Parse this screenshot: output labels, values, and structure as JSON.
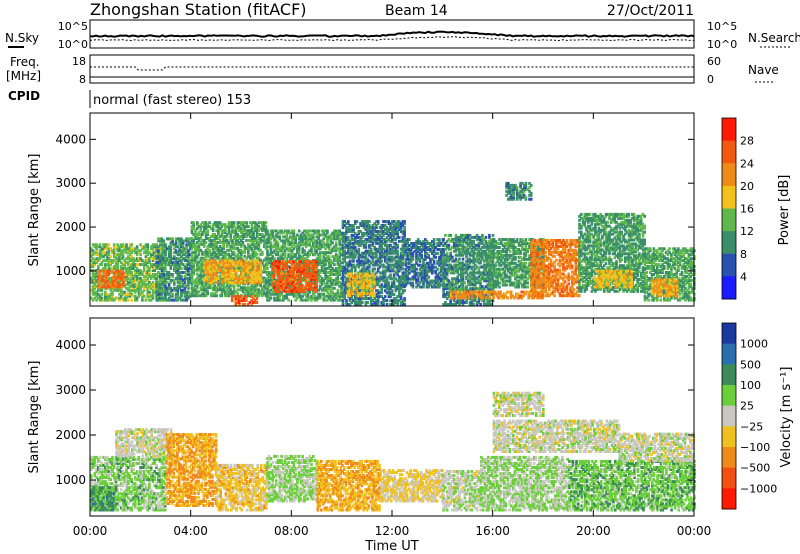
{
  "header": {
    "station": "Zhongshan Station (fitACF)",
    "beam": "Beam 14",
    "date": "27/Oct/2011"
  },
  "status": {
    "left_top_label": "N.Sky",
    "right_top_label": "N.Search",
    "freq_label_1": "Freq.",
    "freq_label_2": "[MHz]",
    "right_mid_label": "Nave",
    "cpid_label": "CPID",
    "cpid_text": "normal (fast stereo) 153",
    "noise_ticks": [
      "10^5",
      "10^0"
    ],
    "freq_ticks": [
      "18",
      "8"
    ],
    "nave_ticks": [
      "60",
      "0"
    ]
  },
  "x_axis": {
    "label": "Time UT",
    "ticks": [
      "00:00",
      "04:00",
      "08:00",
      "12:00",
      "16:00",
      "20:00",
      "00:00"
    ],
    "hours": [
      0,
      4,
      8,
      12,
      16,
      20,
      24
    ]
  },
  "colors": {
    "power": [
      "#1b1bff",
      "#2a50b0",
      "#3a8f6a",
      "#5fb84a",
      "#f2c21a",
      "#f08a18",
      "#f05a10",
      "#ff1a00"
    ],
    "velocity": [
      "#1a3aa0",
      "#2a6fb0",
      "#3a8a5a",
      "#6bcf3a",
      "#c8c8c0",
      "#f0c020",
      "#f08a18",
      "#f05010",
      "#ff1a00"
    ]
  },
  "chart_data": [
    {
      "type": "heatmap",
      "ylabel": "Slant Range [km]",
      "yticks": [
        "4000",
        "3000",
        "2000",
        "1000"
      ],
      "ylim": [
        200,
        4600
      ],
      "xlim": [
        0,
        24
      ],
      "colorbar": {
        "label": "Power [dB]",
        "ticks": [
          "28",
          "24",
          "20",
          "16",
          "12",
          "8",
          "4"
        ],
        "range": [
          0,
          32
        ]
      },
      "regions": [
        {
          "t0": 0.0,
          "t1": 3.0,
          "r0": 300,
          "r1": 1600,
          "v": 14
        },
        {
          "t0": 0.3,
          "t1": 1.3,
          "r0": 600,
          "r1": 1000,
          "v": 24
        },
        {
          "t0": 2.6,
          "t1": 4.0,
          "r0": 300,
          "r1": 1700,
          "v": 10
        },
        {
          "t0": 4.0,
          "t1": 7.0,
          "r0": 400,
          "r1": 2100,
          "v": 12
        },
        {
          "t0": 4.5,
          "t1": 6.8,
          "r0": 700,
          "r1": 1200,
          "v": 20
        },
        {
          "t0": 5.6,
          "t1": 6.6,
          "r0": 200,
          "r1": 400,
          "v": 26
        },
        {
          "t0": 7.0,
          "t1": 10.0,
          "r0": 300,
          "r1": 1900,
          "v": 12
        },
        {
          "t0": 7.2,
          "t1": 9.0,
          "r0": 500,
          "r1": 1200,
          "v": 26
        },
        {
          "t0": 10.0,
          "t1": 12.5,
          "r0": 200,
          "r1": 2100,
          "v": 9
        },
        {
          "t0": 10.2,
          "t1": 11.3,
          "r0": 400,
          "r1": 900,
          "v": 18
        },
        {
          "t0": 12.5,
          "t1": 14.0,
          "r0": 600,
          "r1": 1700,
          "v": 8
        },
        {
          "t0": 14.0,
          "t1": 16.0,
          "r0": 200,
          "r1": 1800,
          "v": 10
        },
        {
          "t0": 14.3,
          "t1": 18.0,
          "r0": 350,
          "r1": 500,
          "v": 22
        },
        {
          "t0": 15.8,
          "t1": 18.0,
          "r0": 600,
          "r1": 1700,
          "v": 11
        },
        {
          "t0": 16.5,
          "t1": 17.5,
          "r0": 2600,
          "r1": 3000,
          "v": 10
        },
        {
          "t0": 17.5,
          "t1": 19.4,
          "r0": 400,
          "r1": 1700,
          "v": 23
        },
        {
          "t0": 19.4,
          "t1": 22.0,
          "r0": 500,
          "r1": 2300,
          "v": 11
        },
        {
          "t0": 20.0,
          "t1": 21.5,
          "r0": 600,
          "r1": 1000,
          "v": 18
        },
        {
          "t0": 22.0,
          "t1": 24.0,
          "r0": 300,
          "r1": 1500,
          "v": 12
        },
        {
          "t0": 22.3,
          "t1": 23.3,
          "r0": 400,
          "r1": 800,
          "v": 20
        }
      ]
    },
    {
      "type": "heatmap",
      "ylabel": "Slant Range [km]",
      "yticks": [
        "4000",
        "3000",
        "2000",
        "1000"
      ],
      "ylim": [
        200,
        4600
      ],
      "xlim": [
        0,
        24
      ],
      "colorbar": {
        "label": "Velocity [m s⁻¹]",
        "ticks": [
          "1000",
          "500",
          "100",
          "25",
          "−25",
          "−100",
          "−500",
          "−1000"
        ],
        "range": [
          -1000,
          1000
        ]
      },
      "regions": [
        {
          "t0": 0.0,
          "t1": 3.0,
          "r0": 300,
          "r1": 1500,
          "v": 200
        },
        {
          "t0": 0.0,
          "t1": 1.0,
          "r0": 300,
          "r1": 800,
          "v": 400
        },
        {
          "t0": 1.0,
          "t1": 3.2,
          "r0": 1500,
          "r1": 2100,
          "v": 0
        },
        {
          "t0": 3.0,
          "t1": 5.0,
          "r0": 400,
          "r1": 2000,
          "v": -350
        },
        {
          "t0": 5.0,
          "t1": 7.0,
          "r0": 300,
          "r1": 1300,
          "v": -200
        },
        {
          "t0": 7.0,
          "t1": 9.0,
          "r0": 500,
          "r1": 1500,
          "v": 150
        },
        {
          "t0": 9.0,
          "t1": 11.5,
          "r0": 300,
          "r1": 1400,
          "v": -300
        },
        {
          "t0": 11.5,
          "t1": 14.0,
          "r0": 500,
          "r1": 1200,
          "v": -150
        },
        {
          "t0": 14.0,
          "t1": 15.5,
          "r0": 300,
          "r1": 1200,
          "v": 50
        },
        {
          "t0": 15.5,
          "t1": 19.0,
          "r0": 300,
          "r1": 1500,
          "v": 120
        },
        {
          "t0": 16.0,
          "t1": 18.0,
          "r0": 2400,
          "r1": 2900,
          "v": 0
        },
        {
          "t0": 16.0,
          "t1": 21.0,
          "r0": 1600,
          "r1": 2300,
          "v": 0
        },
        {
          "t0": 19.0,
          "t1": 24.0,
          "r0": 300,
          "r1": 1400,
          "v": 250
        },
        {
          "t0": 21.0,
          "t1": 24.0,
          "r0": 1400,
          "r1": 2000,
          "v": 0
        }
      ]
    }
  ]
}
